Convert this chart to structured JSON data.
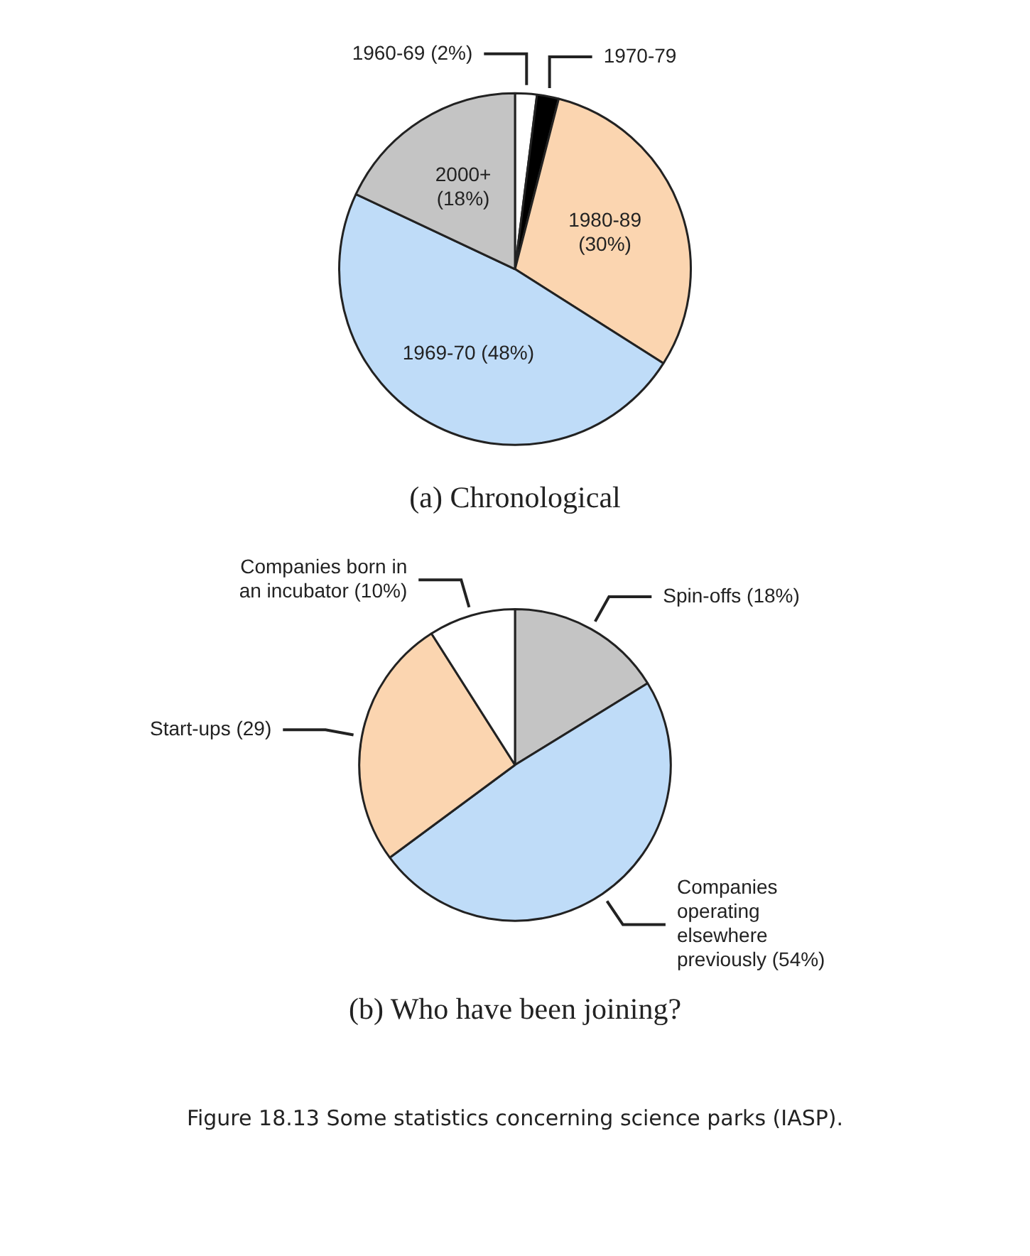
{
  "chart_data": [
    {
      "type": "pie",
      "title": "(a) Chronological",
      "categories": [
        "1960-69",
        "1970-79",
        "1980-89",
        "1969-70",
        "2000+"
      ],
      "values": [
        2,
        2,
        30,
        48,
        18
      ],
      "colors": [
        "#ffffff",
        "#000000",
        "#fbd5b0",
        "#bfdcf8",
        "#c4c4c4"
      ],
      "value_labels": [
        "(2%)",
        null,
        "(30%)",
        "(48%)",
        "(18%)"
      ]
    },
    {
      "type": "pie",
      "title": "(b) Who have been joining?",
      "categories": [
        "Spin-offs",
        "Companies operating elsewhere previously",
        "Start-ups",
        "Companies born in an incubator"
      ],
      "values": [
        18,
        54,
        29,
        10
      ],
      "colors": [
        "#c4c4c4",
        "#bfdcf8",
        "#fbd5b0",
        "#ffffff"
      ],
      "value_labels": [
        "(18%)",
        "(54%)",
        "(29)",
        "(10%)"
      ],
      "annotations": [
        "Figure 18.13 Some statistics concerning science parks (IASP)."
      ]
    }
  ]
}
